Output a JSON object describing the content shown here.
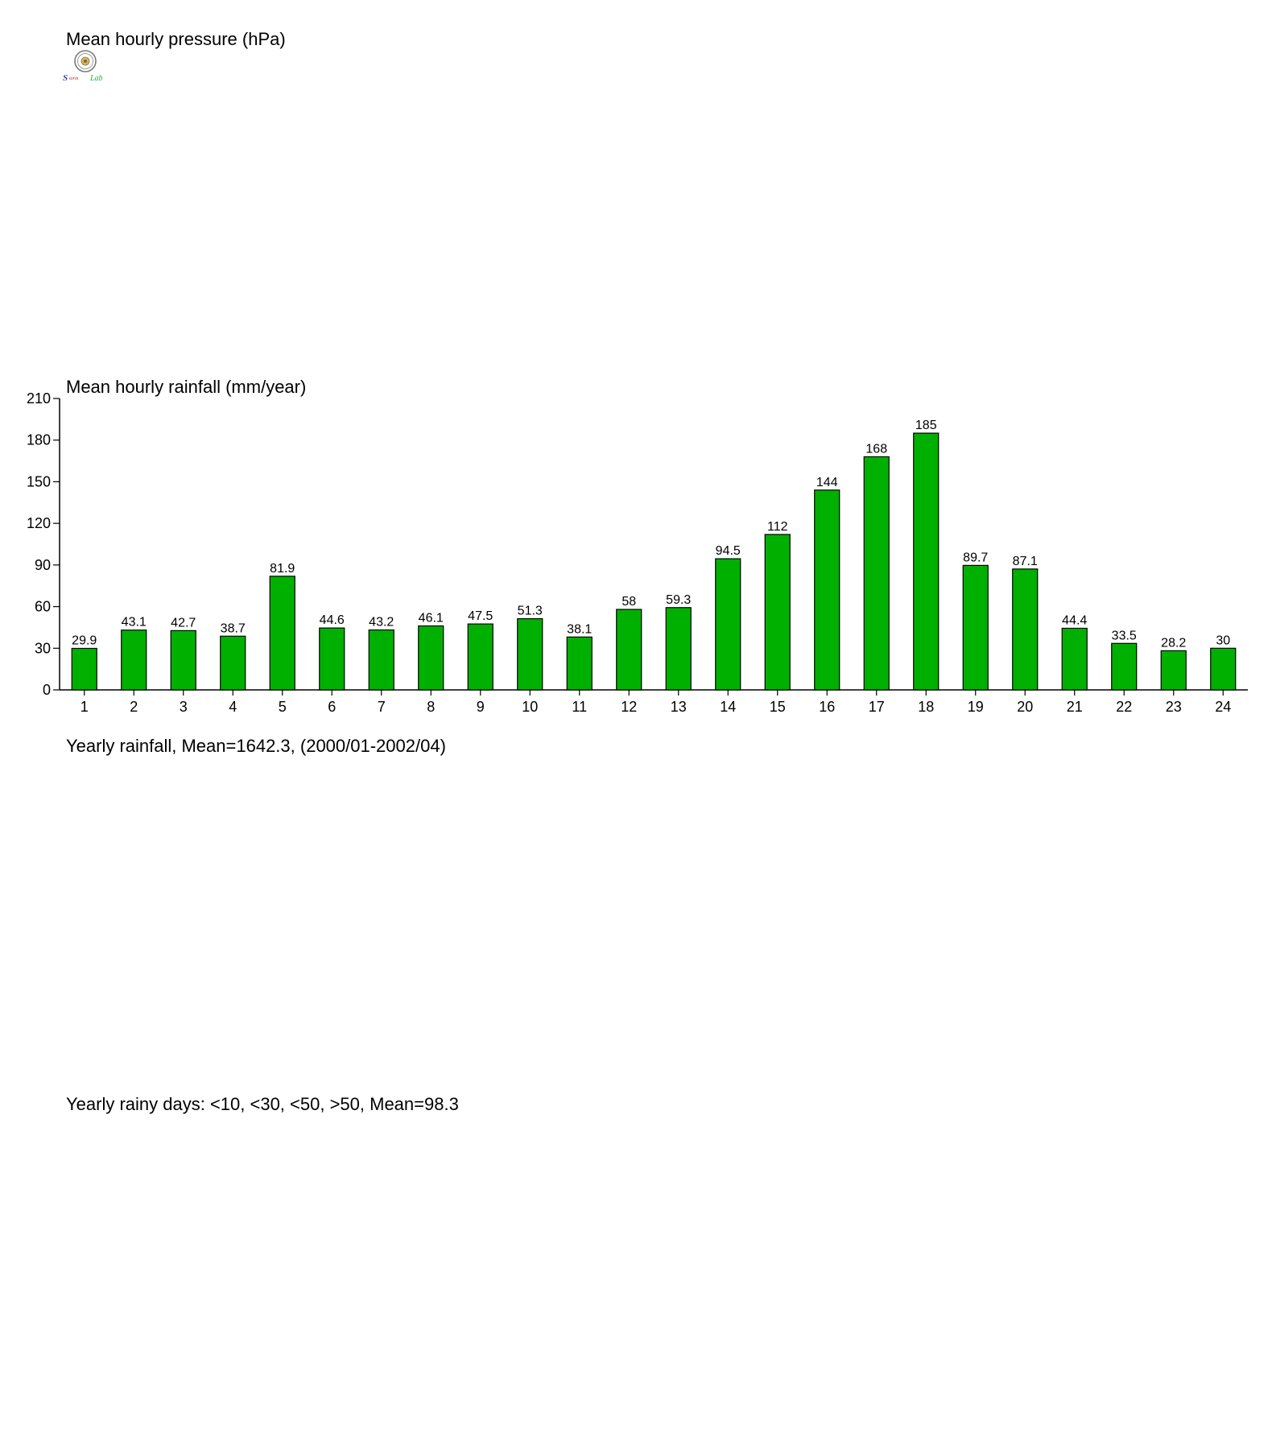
{
  "pressure_panel": {
    "title": "Mean hourly pressure (hPa)"
  },
  "logo": {
    "lab_text": "Storm Lab"
  },
  "rainfall_panel": {
    "caption": "Yearly rainfall, Mean=1642.3, (2000/01-2002/04)"
  },
  "rainy_days_panel": {
    "caption": "Yearly rainy days: <10, <30, <50, >50, Mean=98.3"
  },
  "chart_data": {
    "type": "bar",
    "title": "Mean hourly rainfall (mm/year)",
    "xlabel": "",
    "ylabel": "",
    "categories": [
      "1",
      "2",
      "3",
      "4",
      "5",
      "6",
      "7",
      "8",
      "9",
      "10",
      "11",
      "12",
      "13",
      "14",
      "15",
      "16",
      "17",
      "18",
      "19",
      "20",
      "21",
      "22",
      "23",
      "24"
    ],
    "values": [
      29.9,
      43.1,
      42.7,
      38.7,
      81.9,
      44.6,
      43.2,
      46.1,
      47.5,
      51.3,
      38.1,
      58,
      59.3,
      94.5,
      112,
      144,
      168,
      185,
      89.7,
      87.1,
      44.4,
      33.5,
      28.2,
      30
    ],
    "value_labels": [
      "29.9",
      "43.1",
      "42.7",
      "38.7",
      "81.9",
      "44.6",
      "43.2",
      "46.1",
      "47.5",
      "51.3",
      "38.1",
      "58",
      "59.3",
      "94.5",
      "112",
      "144",
      "168",
      "185",
      "89.7",
      "87.1",
      "44.4",
      "33.5",
      "28.2",
      "30"
    ],
    "ylim": [
      0,
      210
    ],
    "yticks": [
      0,
      30,
      60,
      90,
      120,
      150,
      180,
      210
    ],
    "grid": false,
    "legend": "none",
    "bar_color": "#00b000",
    "bar_edge_color": "#000000"
  }
}
